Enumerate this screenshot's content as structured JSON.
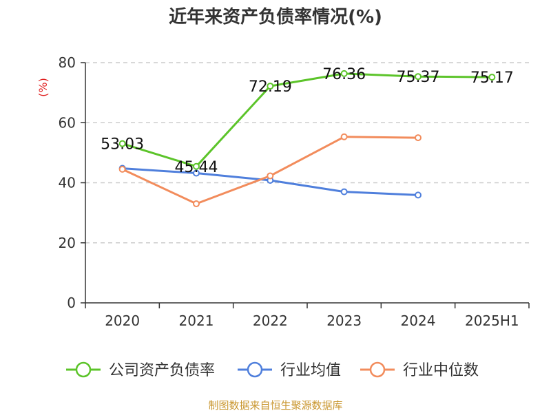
{
  "chart_data": {
    "type": "line",
    "title": "近年来资产负债率情况(%)",
    "ylabel": "(%)",
    "categories": [
      "2020",
      "2021",
      "2022",
      "2023",
      "2024",
      "2025H1"
    ],
    "ylim": [
      0,
      80
    ],
    "yticks": [
      0,
      20,
      40,
      60,
      80
    ],
    "grid": true,
    "legend_position": "bottom",
    "series": [
      {
        "name": "公司资产负债率",
        "color": "#5cc42a",
        "values": [
          53.03,
          45.44,
          72.19,
          76.36,
          75.37,
          75.17
        ],
        "labels": [
          "53.03",
          "45.44",
          "72.19",
          "76.36",
          "75.37",
          "75.17"
        ]
      },
      {
        "name": "行业均值",
        "color": "#4f7fdc",
        "values": [
          44.8,
          43.2,
          40.8,
          37.0,
          35.9,
          null
        ]
      },
      {
        "name": "行业中位数",
        "color": "#f28c5c",
        "values": [
          44.5,
          33.0,
          42.3,
          55.3,
          55.0,
          null
        ]
      }
    ]
  },
  "source": "制图数据来自恒生聚源数据库"
}
